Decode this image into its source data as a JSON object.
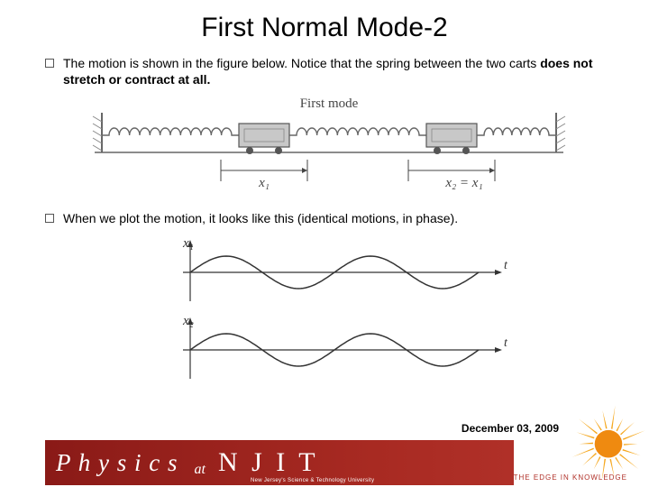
{
  "title": "First Normal Mode-2",
  "bullets": [
    {
      "pre": "The motion is shown in the figure below.  Notice that the spring between the two carts ",
      "bold": "does not stretch or contract at all.",
      "post": ""
    },
    {
      "pre": "When we plot the motion, it looks like this (identical motions, in phase).",
      "bold": "",
      "post": ""
    }
  ],
  "figure1": {
    "label_top": "First mode",
    "x1_label": "x₁",
    "x2_label": "x₂ = x₁",
    "wall_color": "#888888",
    "spring_color": "#666666",
    "cart_fill": "#c8c8c8",
    "cart_stroke": "#555555",
    "wheel_color": "#555555",
    "floor_color": "#666666",
    "text_color": "#444444"
  },
  "figure2": {
    "y1_label": "x₁",
    "y2_label": "x₂",
    "t_label": "t",
    "axis_color": "#333333",
    "wave_color": "#333333",
    "wave_amplitude": 18,
    "wave_periods": 2,
    "wave_width": 320
  },
  "footer": {
    "physics": "P h y s i c s",
    "at": "at",
    "njit": "N J I T",
    "njit_sub": "New Jersey's Science & Technology University",
    "edge": "THE  EDGE  IN  KNOWLEDGE",
    "date": "December 03, 2009",
    "band_color": "#9e2820",
    "sun_color": "#f5a820",
    "sun_core": "#ef8a10"
  }
}
